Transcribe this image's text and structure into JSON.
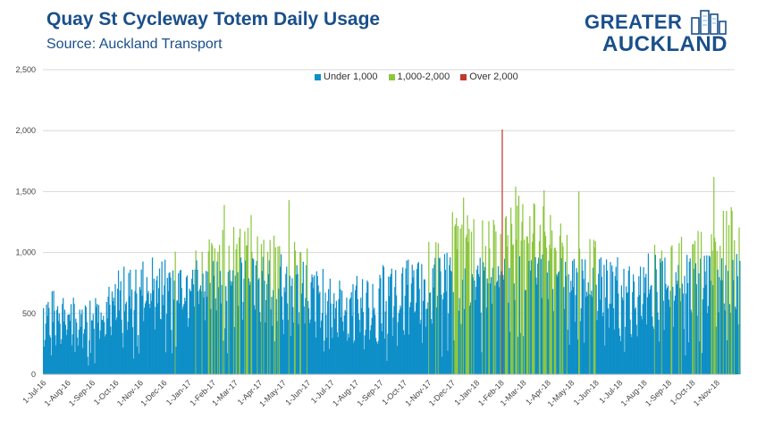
{
  "header": {
    "title": "Quay St Cycleway Totem Daily Usage",
    "source": "Source: Auckland Transport"
  },
  "logo": {
    "line1": "GREATER",
    "line2": "AUCKLAND",
    "color": "#1a4f8b",
    "icon": "city-skyline-icon"
  },
  "chart_data": {
    "type": "bar",
    "title": "Quay St Cycleway Totem Daily Usage",
    "subtitle": "Source: Auckland Transport",
    "xlabel": "",
    "ylabel": "",
    "ylim": [
      0,
      2500
    ],
    "yticks": [
      "0",
      "500",
      "1,000",
      "1,500",
      "2,000",
      "2,500"
    ],
    "xticks": [
      "1-Jul-16",
      "1-Aug-16",
      "1-Sep-16",
      "1-Oct-16",
      "1-Nov-16",
      "1-Dec-16",
      "1-Jan-17",
      "1-Feb-17",
      "1-Mar-17",
      "1-Apr-17",
      "1-May-17",
      "1-Jun-17",
      "1-Jul-17",
      "1-Aug-17",
      "1-Sep-17",
      "1-Oct-17",
      "1-Nov-17",
      "1-Dec-17",
      "1-Jan-18",
      "1-Feb-18",
      "1-Mar-18",
      "1-Apr-18",
      "1-May-18",
      "1-Jun-18",
      "1-Jul-18",
      "1-Aug-18",
      "1-Sep-18",
      "1-Oct-18",
      "1-Nov-18"
    ],
    "grid": true,
    "legend_position": "top-center",
    "series": [
      {
        "name": "Under 1,000",
        "color": "#0f8fc8",
        "range": [
          0,
          1000
        ]
      },
      {
        "name": "1,000-2,000",
        "color": "#8cc63f",
        "range": [
          1000,
          2000
        ]
      },
      {
        "name": "Over 2,000",
        "color": "#c0392b",
        "range": [
          2000,
          99999
        ]
      }
    ],
    "monthly_weekday_avg": [
      560,
      520,
      600,
      720,
      780,
      820,
      900,
      1020,
      1050,
      920,
      880,
      700,
      640,
      660,
      720,
      760,
      880,
      1080,
      1020,
      1180,
      1220,
      1050,
      900,
      800,
      750,
      880,
      920,
      1000,
      1100
    ],
    "monthly_weekend_avg": [
      300,
      280,
      330,
      420,
      480,
      520,
      620,
      700,
      680,
      580,
      520,
      400,
      360,
      380,
      420,
      460,
      520,
      700,
      720,
      800,
      820,
      680,
      560,
      480,
      440,
      520,
      580,
      640,
      700
    ],
    "peaks": [
      {
        "date": "2-Feb-18",
        "value": 2010
      },
      {
        "date": "28-Oct-18",
        "value": 1620
      },
      {
        "date": "19-Feb-18",
        "value": 1540
      },
      {
        "date": "10-May-18",
        "value": 1500
      },
      {
        "date": "8-May-17",
        "value": 1430
      },
      {
        "date": "15-Feb-17",
        "value": 1390
      },
      {
        "date": "15-Dec-17",
        "value": 1450
      }
    ]
  }
}
